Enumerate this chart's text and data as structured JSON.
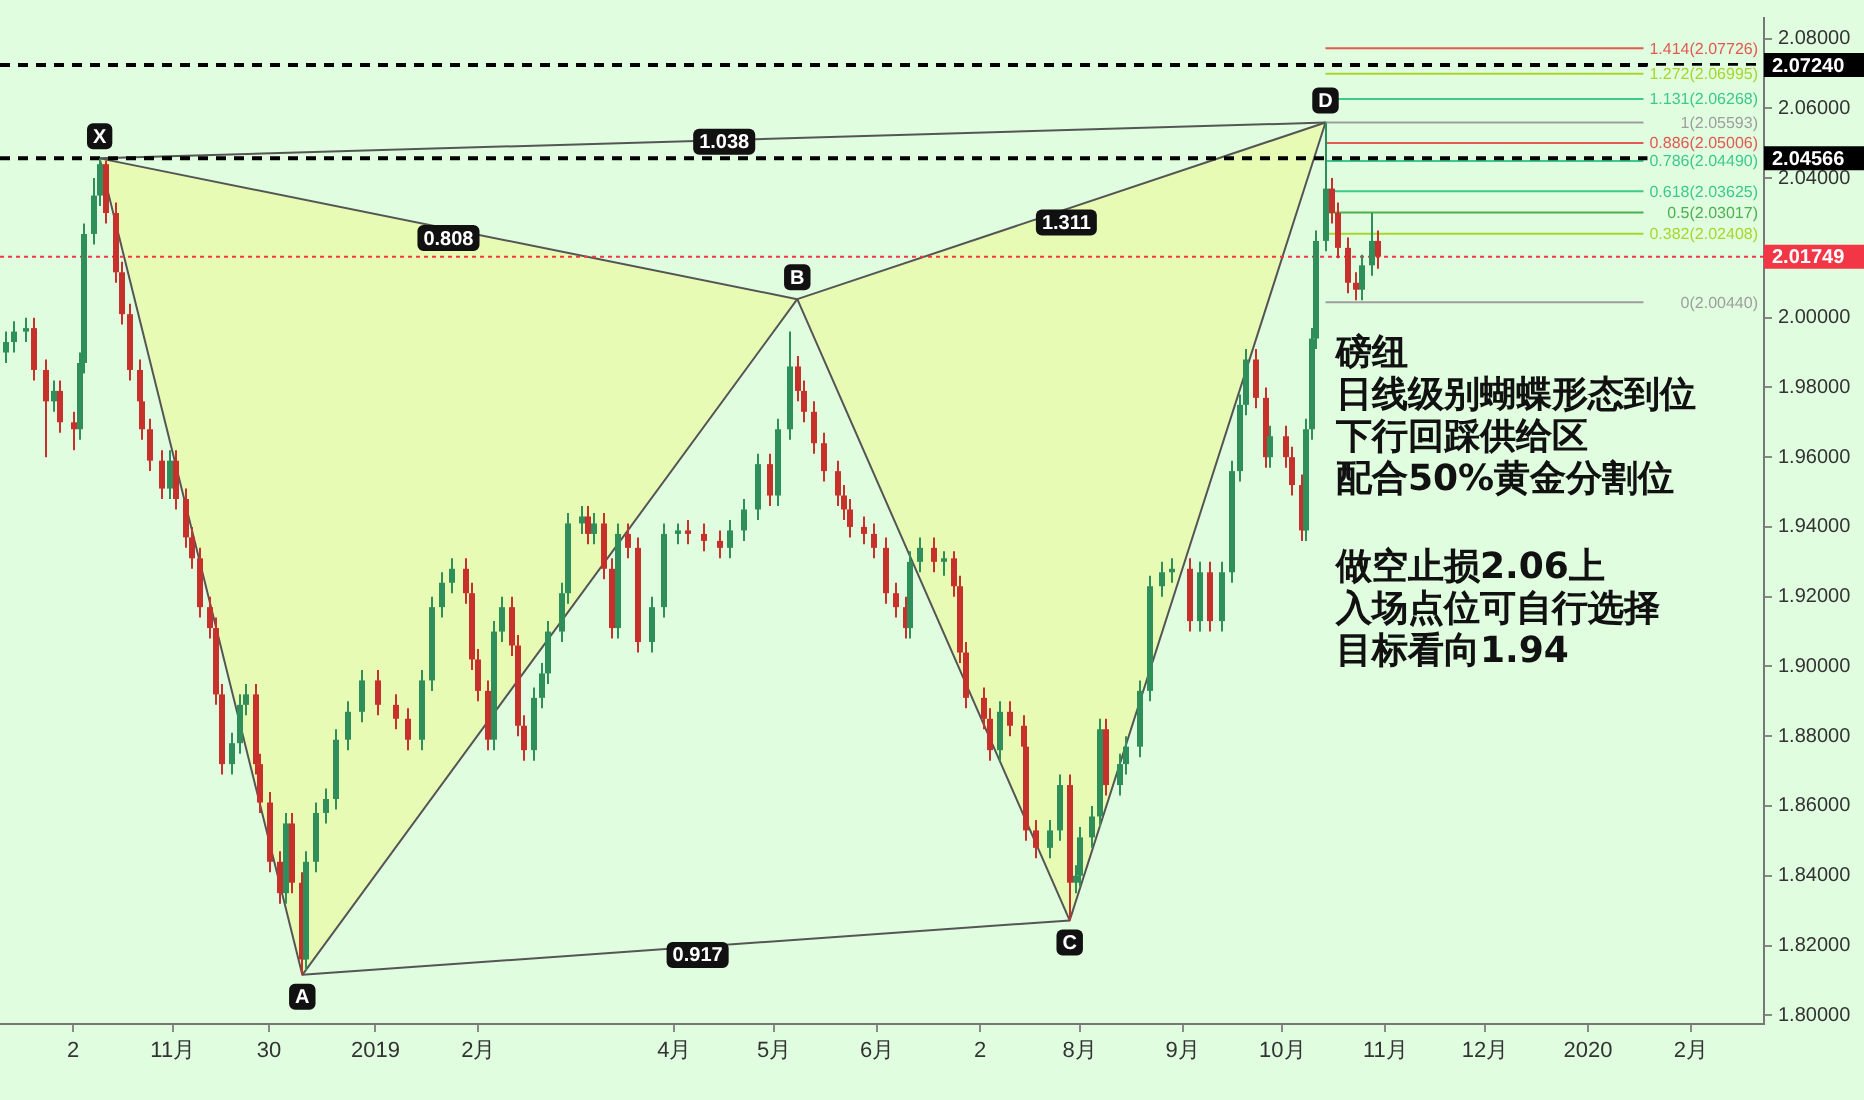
{
  "chart_data": {
    "type": "candlestick",
    "x": [
      "2018-09-12",
      "2018-09-14",
      "2018-09-18",
      "2018-09-20",
      "2018-09-24",
      "2018-09-26",
      "2018-09-28",
      "2018-10-02",
      "2018-10-04",
      "2018-10-05",
      "2018-10-08",
      "2018-10-10",
      "2018-10-12",
      "2018-10-15",
      "2018-10-17",
      "2018-10-19",
      "2018-10-22",
      "2018-10-23",
      "2018-10-25",
      "2018-10-29",
      "2018-10-31",
      "2018-11-02",
      "2018-11-05",
      "2018-11-07",
      "2018-11-09",
      "2018-11-12",
      "2018-11-14",
      "2018-11-16",
      "2018-11-19",
      "2018-11-21",
      "2018-11-23",
      "2018-11-26",
      "2018-11-27",
      "2018-11-30",
      "2018-12-03",
      "2018-12-05",
      "2018-12-07",
      "2018-12-10",
      "2018-12-11",
      "2018-12-14",
      "2018-12-17",
      "2018-12-20",
      "2018-12-24",
      "2018-12-28",
      "2019-01-02",
      "2019-01-07",
      "2019-01-11",
      "2019-01-15",
      "2019-01-18",
      "2019-01-21",
      "2019-01-24",
      "2019-01-28",
      "2019-01-30",
      "2019-02-01",
      "2019-02-04",
      "2019-02-06",
      "2019-02-08",
      "2019-02-11",
      "2019-02-13",
      "2019-02-15",
      "2019-02-18",
      "2019-02-20",
      "2019-02-22",
      "2019-02-26",
      "2019-02-28",
      "2019-03-04",
      "2019-03-06",
      "2019-03-08",
      "2019-03-11",
      "2019-03-13",
      "2019-03-15",
      "2019-03-18",
      "2019-03-21",
      "2019-03-25",
      "2019-03-29",
      "2019-04-02",
      "2019-04-05",
      "2019-04-10",
      "2019-04-15",
      "2019-04-18",
      "2019-04-22",
      "2019-04-26",
      "2019-04-30",
      "2019-05-02",
      "2019-05-06",
      "2019-05-08",
      "2019-05-10",
      "2019-05-13",
      "2019-05-16",
      "2019-05-20",
      "2019-05-22",
      "2019-05-24",
      "2019-05-28",
      "2019-05-31",
      "2019-06-04",
      "2019-06-07",
      "2019-06-10",
      "2019-06-11",
      "2019-06-14",
      "2019-06-18",
      "2019-06-21",
      "2019-06-24",
      "2019-06-26",
      "2019-06-28",
      "2019-07-03",
      "2019-07-05",
      "2019-07-08",
      "2019-07-11",
      "2019-07-15",
      "2019-07-16",
      "2019-07-19",
      "2019-07-23",
      "2019-07-26",
      "2019-07-29",
      "2019-07-31",
      "2019-08-01",
      "2019-08-05",
      "2019-08-07",
      "2019-08-09",
      "2019-08-13",
      "2019-08-15",
      "2019-08-19",
      "2019-08-22",
      "2019-08-26",
      "2019-08-29",
      "2019-09-03",
      "2019-09-06",
      "2019-09-09",
      "2019-09-13",
      "2019-09-16",
      "2019-09-18",
      "2019-09-20",
      "2019-09-23",
      "2019-09-26",
      "2019-09-27",
      "2019-10-02",
      "2019-10-04",
      "2019-10-07",
      "2019-10-08",
      "2019-10-10",
      "2019-10-11",
      "2019-10-14",
      "2019-10-16",
      "2019-10-18",
      "2019-10-21",
      "2019-10-23",
      "2019-10-25",
      "2019-10-28",
      "2019-10-30"
    ],
    "ohlc": [
      [
        1.99,
        1.996,
        1.987,
        1.993
      ],
      [
        1.993,
        1.999,
        1.99,
        1.996
      ],
      [
        1.996,
        2.0,
        1.993,
        1.997
      ],
      [
        1.997,
        2.0,
        1.982,
        1.985
      ],
      [
        1.985,
        1.988,
        1.96,
        1.976
      ],
      [
        1.976,
        1.982,
        1.973,
        1.979
      ],
      [
        1.979,
        1.982,
        1.967,
        1.97
      ],
      [
        1.97,
        1.973,
        1.962,
        1.968
      ],
      [
        1.968,
        1.99,
        1.965,
        1.987
      ],
      [
        1.987,
        2.027,
        1.984,
        2.024
      ],
      [
        2.024,
        2.04,
        2.021,
        2.035
      ],
      [
        2.035,
        2.04566,
        2.032,
        2.044
      ],
      [
        2.044,
        2.045,
        2.027,
        2.03
      ],
      [
        2.03,
        2.033,
        2.01,
        2.013
      ],
      [
        2.013,
        2.016,
        1.998,
        2.001
      ],
      [
        2.001,
        2.004,
        1.982,
        1.985
      ],
      [
        1.985,
        1.988,
        1.973,
        1.976
      ],
      [
        1.976,
        1.979,
        1.965,
        1.968
      ],
      [
        1.968,
        1.971,
        1.956,
        1.959
      ],
      [
        1.959,
        1.962,
        1.948,
        1.951
      ],
      [
        1.951,
        1.962,
        1.948,
        1.959
      ],
      [
        1.959,
        1.962,
        1.945,
        1.948
      ],
      [
        1.948,
        1.951,
        1.934,
        1.937
      ],
      [
        1.937,
        1.94,
        1.928,
        1.931
      ],
      [
        1.931,
        1.934,
        1.914,
        1.917
      ],
      [
        1.917,
        1.92,
        1.908,
        1.911
      ],
      [
        1.911,
        1.914,
        1.889,
        1.892
      ],
      [
        1.892,
        1.895,
        1.869,
        1.872
      ],
      [
        1.872,
        1.881,
        1.869,
        1.878
      ],
      [
        1.878,
        1.892,
        1.875,
        1.889
      ],
      [
        1.889,
        1.895,
        1.886,
        1.892
      ],
      [
        1.892,
        1.895,
        1.869,
        1.872
      ],
      [
        1.872,
        1.875,
        1.858,
        1.861
      ],
      [
        1.861,
        1.864,
        1.841,
        1.844
      ],
      [
        1.844,
        1.847,
        1.832,
        1.835
      ],
      [
        1.835,
        1.858,
        1.832,
        1.855
      ],
      [
        1.855,
        1.858,
        1.835,
        1.838
      ],
      [
        1.838,
        1.841,
        1.8116,
        1.816
      ],
      [
        1.816,
        1.847,
        1.813,
        1.844
      ],
      [
        1.844,
        1.861,
        1.841,
        1.858
      ],
      [
        1.858,
        1.865,
        1.855,
        1.862
      ],
      [
        1.862,
        1.882,
        1.859,
        1.879
      ],
      [
        1.879,
        1.89,
        1.876,
        1.887
      ],
      [
        1.887,
        1.899,
        1.884,
        1.896
      ],
      [
        1.896,
        1.899,
        1.886,
        1.889
      ],
      [
        1.889,
        1.892,
        1.882,
        1.885
      ],
      [
        1.885,
        1.888,
        1.876,
        1.879
      ],
      [
        1.879,
        1.899,
        1.876,
        1.896
      ],
      [
        1.896,
        1.92,
        1.893,
        1.917
      ],
      [
        1.917,
        1.927,
        1.914,
        1.924
      ],
      [
        1.924,
        1.931,
        1.921,
        1.928
      ],
      [
        1.928,
        1.931,
        1.918,
        1.921
      ],
      [
        1.921,
        1.924,
        1.899,
        1.902
      ],
      [
        1.902,
        1.905,
        1.89,
        1.893
      ],
      [
        1.893,
        1.896,
        1.876,
        1.879
      ],
      [
        1.879,
        1.913,
        1.876,
        1.91
      ],
      [
        1.91,
        1.92,
        1.907,
        1.917
      ],
      [
        1.917,
        1.92,
        1.903,
        1.906
      ],
      [
        1.906,
        1.909,
        1.88,
        1.883
      ],
      [
        1.883,
        1.886,
        1.873,
        1.876
      ],
      [
        1.876,
        1.894,
        1.873,
        1.891
      ],
      [
        1.891,
        1.901,
        1.888,
        1.898
      ],
      [
        1.898,
        1.913,
        1.895,
        1.91
      ],
      [
        1.91,
        1.924,
        1.907,
        1.921
      ],
      [
        1.921,
        1.944,
        1.918,
        1.941
      ],
      [
        1.941,
        1.946,
        1.938,
        1.943
      ],
      [
        1.943,
        1.946,
        1.935,
        1.938
      ],
      [
        1.938,
        1.944,
        1.935,
        1.941
      ],
      [
        1.941,
        1.944,
        1.925,
        1.928
      ],
      [
        1.928,
        1.931,
        1.908,
        1.911
      ],
      [
        1.911,
        1.941,
        1.908,
        1.938
      ],
      [
        1.938,
        1.941,
        1.931,
        1.934
      ],
      [
        1.934,
        1.937,
        1.904,
        1.907
      ],
      [
        1.907,
        1.92,
        1.904,
        1.917
      ],
      [
        1.917,
        1.941,
        1.914,
        1.938
      ],
      [
        1.938,
        1.941,
        1.935,
        1.939
      ],
      [
        1.939,
        1.942,
        1.935,
        1.938
      ],
      [
        1.938,
        1.941,
        1.933,
        1.936
      ],
      [
        1.936,
        1.939,
        1.931,
        1.934
      ],
      [
        1.934,
        1.942,
        1.931,
        1.939
      ],
      [
        1.939,
        1.948,
        1.936,
        1.945
      ],
      [
        1.945,
        1.961,
        1.942,
        1.958
      ],
      [
        1.958,
        1.961,
        1.946,
        1.949
      ],
      [
        1.949,
        1.971,
        1.946,
        1.968
      ],
      [
        1.968,
        1.996,
        1.965,
        1.986
      ],
      [
        1.986,
        1.989,
        1.976,
        1.979
      ],
      [
        1.979,
        1.982,
        1.97,
        1.973
      ],
      [
        1.973,
        1.976,
        1.961,
        1.964
      ],
      [
        1.964,
        1.967,
        1.953,
        1.956
      ],
      [
        1.956,
        1.959,
        1.946,
        1.949
      ],
      [
        1.949,
        1.952,
        1.942,
        1.945
      ],
      [
        1.945,
        1.948,
        1.937,
        1.94
      ],
      [
        1.94,
        1.943,
        1.935,
        1.938
      ],
      [
        1.938,
        1.941,
        1.931,
        1.934
      ],
      [
        1.934,
        1.937,
        1.918,
        1.921
      ],
      [
        1.921,
        1.924,
        1.914,
        1.917
      ],
      [
        1.917,
        1.92,
        1.908,
        1.911
      ],
      [
        1.911,
        1.933,
        1.908,
        1.93
      ],
      [
        1.93,
        1.937,
        1.927,
        1.934
      ],
      [
        1.934,
        1.937,
        1.927,
        1.93
      ],
      [
        1.93,
        1.933,
        1.926,
        1.931
      ],
      [
        1.931,
        1.933,
        1.92,
        1.923
      ],
      [
        1.923,
        1.926,
        1.901,
        1.904
      ],
      [
        1.904,
        1.907,
        1.888,
        1.891
      ],
      [
        1.891,
        1.894,
        1.882,
        1.885
      ],
      [
        1.885,
        1.888,
        1.873,
        1.876
      ],
      [
        1.876,
        1.89,
        1.873,
        1.887
      ],
      [
        1.887,
        1.89,
        1.88,
        1.883
      ],
      [
        1.883,
        1.886,
        1.874,
        1.877
      ],
      [
        1.877,
        1.88,
        1.85,
        1.853
      ],
      [
        1.853,
        1.856,
        1.845,
        1.848
      ],
      [
        1.848,
        1.856,
        1.845,
        1.853
      ],
      [
        1.853,
        1.869,
        1.85,
        1.866
      ],
      [
        1.866,
        1.869,
        1.8272,
        1.838
      ],
      [
        1.838,
        1.843,
        1.835,
        1.84
      ],
      [
        1.84,
        1.854,
        1.837,
        1.851
      ],
      [
        1.851,
        1.86,
        1.848,
        1.857
      ],
      [
        1.857,
        1.885,
        1.854,
        1.882
      ],
      [
        1.882,
        1.885,
        1.863,
        1.866
      ],
      [
        1.866,
        1.875,
        1.863,
        1.872
      ],
      [
        1.872,
        1.88,
        1.869,
        1.877
      ],
      [
        1.877,
        1.896,
        1.874,
        1.893
      ],
      [
        1.893,
        1.926,
        1.89,
        1.923
      ],
      [
        1.923,
        1.93,
        1.92,
        1.927
      ],
      [
        1.927,
        1.931,
        1.924,
        1.928
      ],
      [
        1.928,
        1.931,
        1.91,
        1.913
      ],
      [
        1.913,
        1.93,
        1.91,
        1.927
      ],
      [
        1.927,
        1.93,
        1.91,
        1.913
      ],
      [
        1.913,
        1.93,
        1.91,
        1.927
      ],
      [
        1.927,
        1.959,
        1.924,
        1.956
      ],
      [
        1.956,
        1.978,
        1.953,
        1.975
      ],
      [
        1.975,
        1.991,
        1.972,
        1.988
      ],
      [
        1.988,
        1.991,
        1.974,
        1.977
      ],
      [
        1.977,
        1.98,
        1.957,
        1.96
      ],
      [
        1.96,
        1.969,
        1.957,
        1.966
      ],
      [
        1.966,
        1.969,
        1.957,
        1.96
      ],
      [
        1.96,
        1.963,
        1.949,
        1.952
      ],
      [
        1.952,
        1.955,
        1.936,
        1.939
      ],
      [
        1.939,
        1.971,
        1.936,
        1.968
      ],
      [
        1.968,
        1.997,
        1.965,
        1.994
      ],
      [
        1.994,
        2.025,
        1.991,
        2.022
      ],
      [
        2.022,
        2.05593,
        2.019,
        2.037
      ],
      [
        2.037,
        2.04,
        2.027,
        2.03
      ],
      [
        2.03,
        2.033,
        2.017,
        2.02
      ],
      [
        2.02,
        2.023,
        2.007,
        2.01
      ],
      [
        2.01,
        2.013,
        2.005,
        2.008
      ],
      [
        2.008,
        2.018,
        2.005,
        2.015
      ],
      [
        2.015,
        2.03,
        2.012,
        2.022
      ],
      [
        2.022,
        2.025,
        2.014,
        2.01749
      ]
    ],
    "series": [
      {
        "type": "area",
        "color": "#e8fbb4",
        "x": [
          "2018-10-10",
          "2018-12-10",
          "2019-05-08",
          "2018-10-10"
        ],
        "values": [
          2.04566,
          1.8116,
          2.0053,
          2.04566
        ]
      },
      {
        "type": "area",
        "color": "#e8fbb4",
        "x": [
          "2019-05-08",
          "2019-07-29",
          "2019-10-14",
          "2019-05-08"
        ],
        "values": [
          2.0053,
          1.8272,
          2.05593,
          2.0053
        ]
      },
      {
        "type": "line",
        "color": "#555555",
        "x": [
          "2018-10-10",
          "2019-10-14"
        ],
        "values": [
          2.04566,
          2.05593
        ]
      },
      {
        "type": "line",
        "color": "#555555",
        "x": [
          "2018-12-10",
          "2019-07-29"
        ],
        "values": [
          1.8116,
          1.8272
        ]
      }
    ],
    "xlim": [
      "2018-09-10",
      "2020-02-23"
    ],
    "xticks": [
      {
        "value": "2018-10-02",
        "label": "2"
      },
      {
        "value": "2018-11-01",
        "label": "11月"
      },
      {
        "value": "2018-11-30",
        "label": "30"
      },
      {
        "value": "2019-01-01",
        "label": "2019"
      },
      {
        "value": "2019-02-01",
        "label": "2月"
      },
      {
        "value": "2019-04-01",
        "label": "4月"
      },
      {
        "value": "2019-05-01",
        "label": "5月"
      },
      {
        "value": "2019-06-01",
        "label": "6月"
      },
      {
        "value": "2019-07-02",
        "label": "2"
      },
      {
        "value": "2019-08-01",
        "label": "8月"
      },
      {
        "value": "2019-09-01",
        "label": "9月"
      },
      {
        "value": "2019-10-01",
        "label": "10月"
      },
      {
        "value": "2019-11-01",
        "label": "11月"
      },
      {
        "value": "2019-12-01",
        "label": "12月"
      },
      {
        "value": "2020-01-01",
        "label": "2020"
      },
      {
        "value": "2020-02-01",
        "label": "2月"
      }
    ],
    "ylim": [
      1.7975,
      2.0859
    ],
    "yticks": [
      {
        "value": 1.8,
        "label": "1.80000"
      },
      {
        "value": 1.82,
        "label": "1.82000"
      },
      {
        "value": 1.84,
        "label": "1.84000"
      },
      {
        "value": 1.86,
        "label": "1.86000"
      },
      {
        "value": 1.88,
        "label": "1.88000"
      },
      {
        "value": 1.9,
        "label": "1.90000"
      },
      {
        "value": 1.92,
        "label": "1.92000"
      },
      {
        "value": 1.94,
        "label": "1.94000"
      },
      {
        "value": 1.96,
        "label": "1.96000"
      },
      {
        "value": 1.98,
        "label": "1.98000"
      },
      {
        "value": 2.0,
        "label": "2.00000"
      },
      {
        "value": 2.02,
        "label": null
      },
      {
        "value": 2.04,
        "label": "2.04000"
      },
      {
        "value": 2.06,
        "label": "2.06000"
      },
      {
        "value": 2.08,
        "label": "2.08000"
      }
    ],
    "ref_lines": [
      {
        "axis": "y",
        "value": 2.0724,
        "label": "2.07240",
        "color": "#000000",
        "line_style": "dashed"
      },
      {
        "axis": "y",
        "value": 2.04566,
        "label": "2.04566",
        "color": "#000000",
        "line_style": "dashed"
      },
      {
        "axis": "y",
        "value": 2.01749,
        "label": "2.01749",
        "color": "#f23645",
        "line_style": "dotted"
      },
      {
        "axis": "y",
        "value": 2.07726,
        "label": "1.414(2.07726)",
        "color": "#e05a4f"
      },
      {
        "axis": "y",
        "value": 2.06995,
        "label": "1.272(2.06995)",
        "color": "#a8d62c"
      },
      {
        "axis": "y",
        "value": 2.06268,
        "label": "1.131(2.06268)",
        "color": "#3ec98c"
      },
      {
        "axis": "y",
        "value": 2.05593,
        "label": "1(2.05593)",
        "color": "#9e9e9e"
      },
      {
        "axis": "y",
        "value": 2.05006,
        "label": "0.886(2.05006)",
        "color": "#e05a4f"
      },
      {
        "axis": "y",
        "value": 2.0449,
        "label": "0.786(2.04490)",
        "color": "#3ec98c"
      },
      {
        "axis": "y",
        "value": 2.03625,
        "label": "0.618(2.03625)",
        "color": "#3ec98c"
      },
      {
        "axis": "y",
        "value": 2.03017,
        "label": "0.5(2.03017)",
        "color": "#4caf50"
      },
      {
        "axis": "y",
        "value": 2.02408,
        "label": "0.382(2.02408)",
        "color": "#a8d62c"
      },
      {
        "axis": "y",
        "value": 2.0044,
        "label": "0(2.00440)",
        "color": "#9e9e9e"
      }
    ],
    "annotations": [
      {
        "text": "X",
        "x": "2018-10-10",
        "y": 2.04566
      },
      {
        "text": "A",
        "x": "2018-12-10",
        "y": 1.8116
      },
      {
        "text": "B",
        "x": "2019-05-08",
        "y": 2.0053
      },
      {
        "text": "C",
        "x": "2019-07-29",
        "y": 1.8272
      },
      {
        "text": "D",
        "x": "2019-10-14",
        "y": 2.05593
      },
      {
        "text": "0.808",
        "x": "2019-01-23",
        "y": 2.0228
      },
      {
        "text": "1.038",
        "x": "2019-04-16",
        "y": 2.0504
      },
      {
        "text": "1.311",
        "x": "2019-07-28",
        "y": 2.0273
      },
      {
        "text": "0.917",
        "x": "2019-04-08",
        "y": 1.8173
      },
      "磅纽",
      "日线级别蝴蝶形态到位",
      "下行回踩供给区",
      "配合50%黄金分割位",
      "做空止损2.06上",
      "入场点位可自行选择",
      "目标看向1.94"
    ]
  }
}
